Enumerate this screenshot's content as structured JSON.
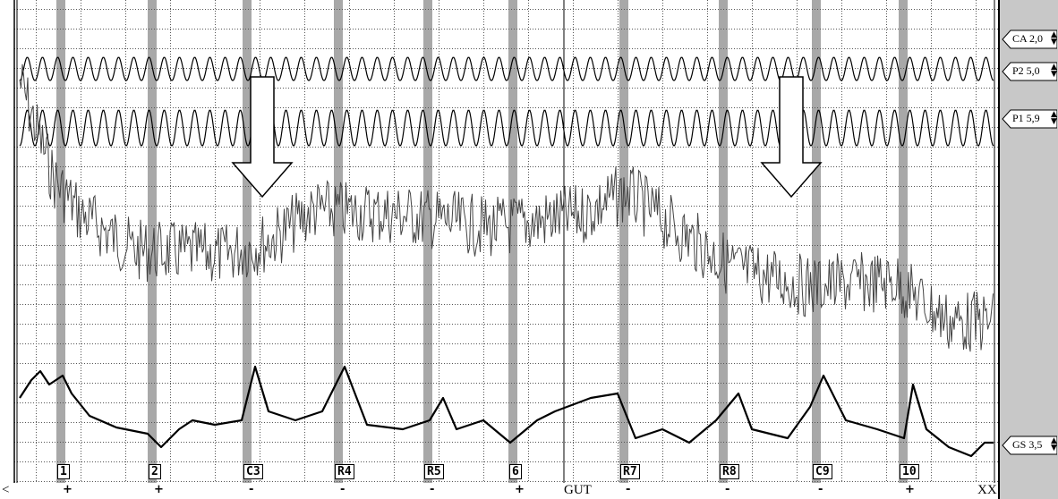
{
  "channels": [
    {
      "id": "CA",
      "label": "CA 2,0"
    },
    {
      "id": "P2",
      "label": "P2  5,0"
    },
    {
      "id": "P1",
      "label": "P1  5,9"
    },
    {
      "id": "GS",
      "label": "GS 3,5"
    }
  ],
  "questions": [
    {
      "label": "1",
      "mark": "+"
    },
    {
      "label": "2",
      "mark": "+"
    },
    {
      "label": "C3",
      "mark": "-"
    },
    {
      "label": "R4",
      "mark": "-"
    },
    {
      "label": "R5",
      "mark": "-"
    },
    {
      "label": "6",
      "mark": "+"
    },
    {
      "label": "R7",
      "mark": "-"
    },
    {
      "label": "R8",
      "mark": "-"
    },
    {
      "label": "C9",
      "mark": "-"
    },
    {
      "label": "10",
      "mark": "+"
    }
  ],
  "footer": {
    "gut": "GUT",
    "left_mark": "<",
    "end_mark": "XX"
  },
  "colors": {
    "band": "#a8a8a8",
    "panel": "#c8c8c8",
    "grid": "#555555",
    "trace": "#000000",
    "cardio": "#444444"
  },
  "icons": [
    "down-arrow-icon",
    "down-arrow-icon",
    "channel-arrow-icon",
    "spin-icon"
  ]
}
